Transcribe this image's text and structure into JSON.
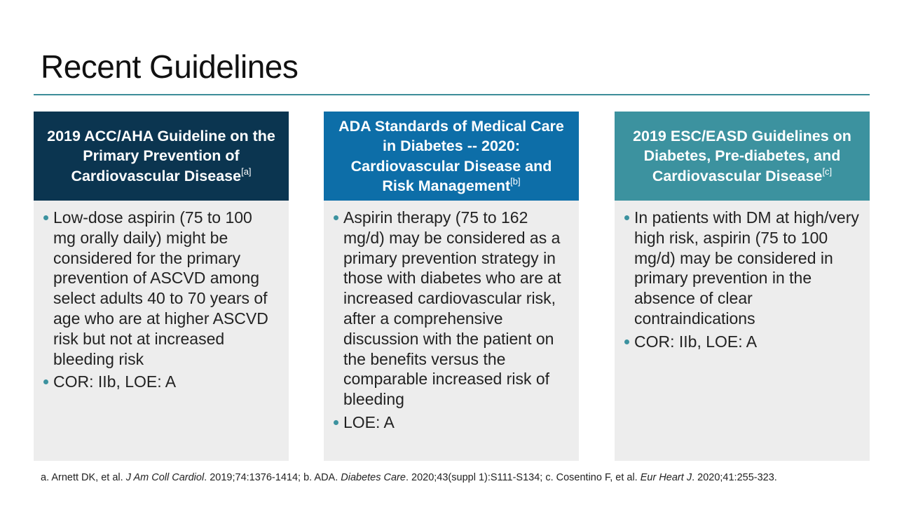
{
  "title": "Recent Guidelines",
  "cards": [
    {
      "header": "2019 ACC/AHA Guideline on the Primary Prevention of Cardiovascular Disease",
      "ref": "[a]",
      "bullets": [
        "Low-dose aspirin (75 to 100 mg orally daily) might be considered for the primary prevention of ASCVD among select adults 40 to 70 years of age who are at higher ASCVD risk but not at increased bleeding risk",
        "COR: IIb, LOE: A"
      ]
    },
    {
      "header": "ADA Standards of Medical Care in Diabetes -- 2020: Cardiovascular Disease and Risk Management",
      "ref": "[b]",
      "bullets": [
        "Aspirin therapy (75 to 162 mg/d) may be considered as a primary prevention strategy in those with diabetes who are at increased cardiovascular risk, after a comprehensive discussion with the patient on the benefits versus the comparable increased risk of bleeding",
        "LOE: A"
      ]
    },
    {
      "header": "2019 ESC/EASD Guidelines on Diabetes, Pre-diabetes, and Cardiovascular Disease",
      "ref": "[c]",
      "bullets": [
        "In patients with DM at high/very high risk, aspirin (75 to 100 mg/d) may be considered in primary prevention in the absence of clear contraindications",
        "COR: IIb, LOE: A"
      ]
    }
  ],
  "footnote": {
    "a_prefix": "a. Arnett DK, et al. ",
    "a_journal": "J Am Coll Cardiol",
    "a_suffix": ". 2019;74:1376-1414; b. ADA. ",
    "b_journal": "Diabetes Care",
    "b_suffix": ". 2020;43(suppl 1):S111-S134; c. Cosentino F, et al. ",
    "c_journal": "Eur Heart J",
    "c_suffix": ". 2020;41:255-323."
  },
  "colors": {
    "card1_header": "#0b3550",
    "card2_header": "#0d6ea8",
    "card3_header": "#3c929f",
    "accent": "#3c8d99",
    "card_body": "#ededed"
  }
}
